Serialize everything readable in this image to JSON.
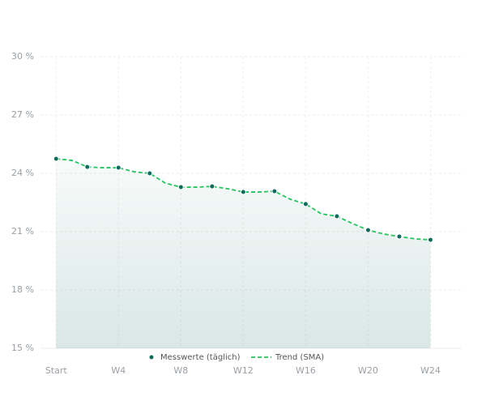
{
  "chart_data": {
    "type": "line",
    "xlim": [
      -1,
      26
    ],
    "ylim": [
      15,
      30
    ],
    "xticks": [
      {
        "value": 0,
        "label": "Start"
      },
      {
        "value": 4,
        "label": "W4"
      },
      {
        "value": 8,
        "label": "W8"
      },
      {
        "value": 12,
        "label": "W12"
      },
      {
        "value": 16,
        "label": "W16"
      },
      {
        "value": 20,
        "label": "W20"
      },
      {
        "value": 24,
        "label": "W24"
      }
    ],
    "yticks": [
      {
        "value": 15,
        "label": "15 %"
      },
      {
        "value": 18,
        "label": "18 %"
      },
      {
        "value": 21,
        "label": "21 %"
      },
      {
        "value": 24,
        "label": "24 %"
      },
      {
        "value": 27,
        "label": "27 %"
      },
      {
        "value": 30,
        "label": "30 %"
      }
    ],
    "grid": true,
    "series": [
      {
        "name": "Messwerte (täglich)",
        "color": "#0f6b5c",
        "x": [
          0,
          2,
          4,
          6,
          8,
          10,
          12,
          14,
          16,
          18,
          20,
          22,
          24
        ],
        "values": [
          24.75,
          24.33,
          24.29,
          24.0,
          23.29,
          23.33,
          23.04,
          23.08,
          22.42,
          21.79,
          21.08,
          20.75,
          20.58
        ]
      },
      {
        "name": "Trend (SMA)",
        "color": "#22c55e",
        "x": [
          0,
          1,
          2,
          3,
          4,
          5,
          6,
          7,
          8,
          9,
          10,
          11,
          12,
          13,
          14,
          15,
          16,
          17,
          18,
          19,
          20,
          21,
          22,
          23,
          24
        ],
        "values": [
          24.75,
          24.67,
          24.33,
          24.29,
          24.29,
          24.08,
          24.0,
          23.5,
          23.29,
          23.29,
          23.33,
          23.21,
          23.04,
          23.04,
          23.08,
          22.67,
          22.42,
          21.92,
          21.79,
          21.42,
          21.08,
          20.88,
          20.75,
          20.63,
          20.58
        ]
      }
    ]
  }
}
